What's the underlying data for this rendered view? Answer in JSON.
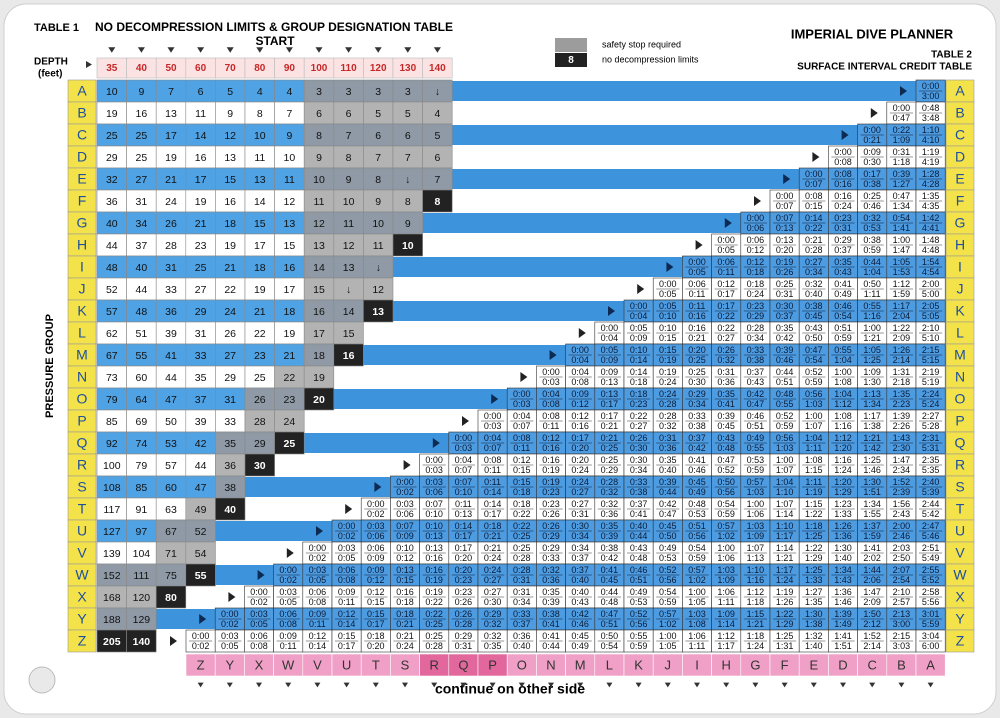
{
  "header": {
    "table1_label": "TABLE 1",
    "table1_title": "NO DECOMPRESSION LIMITS & GROUP DESIGNATION TABLE",
    "start": "START",
    "depth_label": [
      "DEPTH",
      "(feet)"
    ],
    "planner_title": "IMPERIAL DIVE PLANNER",
    "table2_label": "TABLE 2",
    "table2_title": "SURFACE INTERVAL CREDIT TABLE"
  },
  "legend": {
    "safety_stop": "safety stop required",
    "ndl_sample": "8",
    "ndl": "no decompression limits"
  },
  "side_label": "PRESSURE GROUP",
  "footer": "continue on other side",
  "pressure_groups": [
    "A",
    "B",
    "C",
    "D",
    "E",
    "F",
    "G",
    "H",
    "I",
    "J",
    "K",
    "L",
    "M",
    "N",
    "O",
    "P",
    "Q",
    "R",
    "S",
    "T",
    "U",
    "V",
    "W",
    "X",
    "Y",
    "Z"
  ],
  "table1": {
    "depths": [
      35,
      40,
      50,
      60,
      70,
      80,
      90,
      100,
      110,
      120,
      130,
      140
    ],
    "rows": [
      [
        10,
        9,
        7,
        6,
        5,
        4,
        4,
        3,
        3,
        3,
        3,
        "↓"
      ],
      [
        19,
        16,
        13,
        11,
        9,
        8,
        7,
        6,
        6,
        5,
        5,
        4
      ],
      [
        25,
        25,
        17,
        14,
        12,
        10,
        9,
        8,
        7,
        6,
        6,
        5
      ],
      [
        29,
        25,
        19,
        16,
        13,
        11,
        10,
        9,
        8,
        7,
        7,
        6
      ],
      [
        32,
        27,
        21,
        17,
        15,
        13,
        11,
        10,
        9,
        8,
        "↓",
        7
      ],
      [
        36,
        31,
        24,
        19,
        16,
        14,
        12,
        11,
        10,
        9,
        8,
        8
      ],
      [
        40,
        34,
        26,
        21,
        18,
        15,
        13,
        12,
        11,
        10,
        9
      ],
      [
        44,
        37,
        28,
        23,
        19,
        17,
        15,
        13,
        12,
        11,
        10
      ],
      [
        48,
        40,
        31,
        25,
        21,
        18,
        16,
        14,
        13,
        "↓"
      ],
      [
        52,
        44,
        33,
        27,
        22,
        19,
        17,
        15,
        "↓",
        12
      ],
      [
        57,
        48,
        36,
        29,
        24,
        21,
        18,
        16,
        14,
        13
      ],
      [
        62,
        51,
        39,
        31,
        26,
        22,
        19,
        17,
        15
      ],
      [
        67,
        55,
        41,
        33,
        27,
        23,
        21,
        18,
        16
      ],
      [
        73,
        60,
        44,
        35,
        29,
        25,
        22,
        19
      ],
      [
        79,
        64,
        47,
        37,
        31,
        26,
        23,
        20
      ],
      [
        85,
        69,
        50,
        39,
        33,
        28,
        24
      ],
      [
        92,
        74,
        53,
        42,
        35,
        29,
        25
      ],
      [
        100,
        79,
        57,
        44,
        36,
        30
      ],
      [
        108,
        85,
        60,
        47,
        38
      ],
      [
        117,
        91,
        63,
        49,
        40
      ],
      [
        127,
        97,
        67,
        52
      ],
      [
        139,
        104,
        71,
        54
      ],
      [
        152,
        111,
        75,
        55
      ],
      [
        168,
        120,
        80
      ],
      [
        188,
        129
      ],
      [
        205,
        140
      ]
    ]
  },
  "table2": {
    "rows": [
      {
        "from": [
          "0:00"
        ],
        "to": [
          "3:00"
        ]
      },
      {
        "from": [
          "0:00",
          "0:48"
        ],
        "to": [
          "0:47",
          "3:48"
        ]
      },
      {
        "from": [
          "0:00",
          "0:22",
          "1:10"
        ],
        "to": [
          "0:21",
          "1:09",
          "4:10"
        ]
      },
      {
        "from": [
          "0:00",
          "0:09",
          "0:31",
          "1:19"
        ],
        "to": [
          "0:08",
          "0:30",
          "1:18",
          "4:19"
        ]
      },
      {
        "from": [
          "0:00",
          "0:08",
          "0:17",
          "0:39",
          "1:28"
        ],
        "to": [
          "0:07",
          "0:16",
          "0:38",
          "1:27",
          "4:28"
        ]
      },
      {
        "from": [
          "0:00",
          "0:08",
          "0:16",
          "0:25",
          "0:47",
          "1:35"
        ],
        "to": [
          "0:07",
          "0:15",
          "0:24",
          "0:46",
          "1:34",
          "4:35"
        ]
      },
      {
        "from": [
          "0:00",
          "0:07",
          "0:14",
          "0:23",
          "0:32",
          "0:54",
          "1:42"
        ],
        "to": [
          "0:06",
          "0:13",
          "0:22",
          "0:31",
          "0:53",
          "1:41",
          "4:41"
        ]
      },
      {
        "from": [
          "0:00",
          "0:06",
          "0:13",
          "0:21",
          "0:29",
          "0:38",
          "1:00",
          "1:48"
        ],
        "to": [
          "0:05",
          "0:12",
          "0:20",
          "0:28",
          "0:37",
          "0:59",
          "1:47",
          "4:48"
        ]
      },
      {
        "from": [
          "0:00",
          "0:06",
          "0:12",
          "0:19",
          "0:27",
          "0:35",
          "0:44",
          "1:05",
          "1:54"
        ],
        "to": [
          "0:05",
          "0:11",
          "0:18",
          "0:26",
          "0:34",
          "0:43",
          "1:04",
          "1:53",
          "4:54"
        ]
      },
      {
        "from": [
          "0:00",
          "0:06",
          "0:12",
          "0:18",
          "0:25",
          "0:32",
          "0:41",
          "0:50",
          "1:12",
          "2:00"
        ],
        "to": [
          "0:05",
          "0:11",
          "0:17",
          "0:24",
          "0:31",
          "0:40",
          "0:49",
          "1:11",
          "1:59",
          "5:00"
        ]
      },
      {
        "from": [
          "0:00",
          "0:05",
          "0:11",
          "0:17",
          "0:23",
          "0:30",
          "0:38",
          "0:46",
          "0:55",
          "1:17",
          "2:05"
        ],
        "to": [
          "0:04",
          "0:10",
          "0:16",
          "0:22",
          "0:29",
          "0:37",
          "0:45",
          "0:54",
          "1:16",
          "2:04",
          "5:05"
        ]
      },
      {
        "from": [
          "0:00",
          "0:05",
          "0:10",
          "0:16",
          "0:22",
          "0:28",
          "0:35",
          "0:43",
          "0:51",
          "1:00",
          "1:22",
          "2:10"
        ],
        "to": [
          "0:04",
          "0:09",
          "0:15",
          "0:21",
          "0:27",
          "0:34",
          "0:42",
          "0:50",
          "0:59",
          "1:21",
          "2:09",
          "5:10"
        ]
      },
      {
        "from": [
          "0:00",
          "0:05",
          "0:10",
          "0:15",
          "0:20",
          "0:26",
          "0:33",
          "0:39",
          "0:47",
          "0:55",
          "1:05",
          "1:26",
          "2:15"
        ],
        "to": [
          "0:04",
          "0:09",
          "0:14",
          "0:19",
          "0:25",
          "0:32",
          "0:38",
          "0:46",
          "0:54",
          "1:04",
          "1:25",
          "2:14",
          "5:15"
        ]
      },
      {
        "from": [
          "0:00",
          "0:04",
          "0:09",
          "0:14",
          "0:19",
          "0:25",
          "0:31",
          "0:37",
          "0:44",
          "0:52",
          "1:00",
          "1:09",
          "1:31",
          "2:19"
        ],
        "to": [
          "0:03",
          "0:08",
          "0:13",
          "0:18",
          "0:24",
          "0:30",
          "0:36",
          "0:43",
          "0:51",
          "0:59",
          "1:08",
          "1:30",
          "2:18",
          "5:19"
        ]
      },
      {
        "from": [
          "0:00",
          "0:04",
          "0:09",
          "0:13",
          "0:18",
          "0:24",
          "0:29",
          "0:35",
          "0:42",
          "0:48",
          "0:56",
          "1:04",
          "1:13",
          "1:35",
          "2:24"
        ],
        "to": [
          "0:03",
          "0:08",
          "0:12",
          "0:17",
          "0:23",
          "0:28",
          "0:34",
          "0:41",
          "0:47",
          "0:55",
          "1:03",
          "1:12",
          "1:34",
          "2:23",
          "5:24"
        ]
      },
      {
        "from": [
          "0:00",
          "0:04",
          "0:08",
          "0:12",
          "0:17",
          "0:22",
          "0:28",
          "0:33",
          "0:39",
          "0:46",
          "0:52",
          "1:00",
          "1:08",
          "1:17",
          "1:39",
          "2:27"
        ],
        "to": [
          "0:03",
          "0:07",
          "0:11",
          "0:16",
          "0:21",
          "0:27",
          "0:32",
          "0:38",
          "0:45",
          "0:51",
          "0:59",
          "1:07",
          "1:16",
          "1:38",
          "2:26",
          "5:28"
        ]
      },
      {
        "from": [
          "0:00",
          "0:04",
          "0:08",
          "0:12",
          "0:17",
          "0:21",
          "0:26",
          "0:31",
          "0:37",
          "0:43",
          "0:49",
          "0:56",
          "1:04",
          "1:12",
          "1:21",
          "1:43",
          "2:31"
        ],
        "to": [
          "0:03",
          "0:07",
          "0:11",
          "0:16",
          "0:20",
          "0:25",
          "0:30",
          "0:36",
          "0:42",
          "0:48",
          "0:55",
          "1:03",
          "1:11",
          "1:20",
          "1:42",
          "2:30",
          "5:31"
        ]
      },
      {
        "from": [
          "0:00",
          "0:04",
          "0:08",
          "0:12",
          "0:16",
          "0:20",
          "0:25",
          "0:30",
          "0:35",
          "0:41",
          "0:47",
          "0:53",
          "1:00",
          "1:08",
          "1:16",
          "1:25",
          "1:47",
          "2:35"
        ],
        "to": [
          "0:03",
          "0:07",
          "0:11",
          "0:15",
          "0:19",
          "0:24",
          "0:29",
          "0:34",
          "0:40",
          "0:46",
          "0:52",
          "0:59",
          "1:07",
          "1:15",
          "1:24",
          "1:46",
          "2:34",
          "5:35"
        ]
      },
      {
        "from": [
          "0:00",
          "0:03",
          "0:07",
          "0:11",
          "0:15",
          "0:19",
          "0:24",
          "0:28",
          "0:33",
          "0:39",
          "0:45",
          "0:50",
          "0:57",
          "1:04",
          "1:11",
          "1:20",
          "1:30",
          "1:52",
          "2:40"
        ],
        "to": [
          "0:02",
          "0:06",
          "0:10",
          "0:14",
          "0:18",
          "0:23",
          "0:27",
          "0:32",
          "0:38",
          "0:44",
          "0:49",
          "0:56",
          "1:03",
          "1:10",
          "1:19",
          "1:29",
          "1:51",
          "2:39",
          "5:39"
        ]
      },
      {
        "from": [
          "0:00",
          "0:03",
          "0:07",
          "0:11",
          "0:14",
          "0:18",
          "0:23",
          "0:27",
          "0:32",
          "0:37",
          "0:42",
          "0:48",
          "0:54",
          "1:00",
          "1:07",
          "1:15",
          "1:23",
          "1:34",
          "1:56",
          "2:44"
        ],
        "to": [
          "0:02",
          "0:06",
          "0:10",
          "0:13",
          "0:17",
          "0:22",
          "0:26",
          "0:31",
          "0:36",
          "0:41",
          "0:47",
          "0:53",
          "0:59",
          "1:06",
          "1:14",
          "1:22",
          "1:33",
          "1:55",
          "2:43",
          "5:42"
        ]
      },
      {
        "from": [
          "0:00",
          "0:03",
          "0:07",
          "0:10",
          "0:14",
          "0:18",
          "0:22",
          "0:26",
          "0:30",
          "0:35",
          "0:40",
          "0:45",
          "0:51",
          "0:57",
          "1:03",
          "1:10",
          "1:18",
          "1:26",
          "1:37",
          "2:00",
          "2:47"
        ],
        "to": [
          "0:02",
          "0:06",
          "0:09",
          "0:13",
          "0:17",
          "0:21",
          "0:25",
          "0:29",
          "0:34",
          "0:39",
          "0:44",
          "0:50",
          "0:56",
          "1:02",
          "1:09",
          "1:17",
          "1:25",
          "1:36",
          "1:59",
          "2:46",
          "5:46"
        ]
      },
      {
        "from": [
          "0:00",
          "0:03",
          "0:06",
          "0:10",
          "0:13",
          "0:17",
          "0:21",
          "0:25",
          "0:29",
          "0:34",
          "0:38",
          "0:43",
          "0:49",
          "0:54",
          "1:00",
          "1:07",
          "1:14",
          "1:22",
          "1:30",
          "1:41",
          "2:03",
          "2:51"
        ],
        "to": [
          "0:02",
          "0:05",
          "0:09",
          "0:12",
          "0:16",
          "0:20",
          "0:24",
          "0:28",
          "0:33",
          "0:37",
          "0:42",
          "0:48",
          "0:53",
          "0:59",
          "1:06",
          "1:13",
          "1:21",
          "1:29",
          "1:40",
          "2:02",
          "2:50",
          "5:49"
        ]
      },
      {
        "from": [
          "0:00",
          "0:03",
          "0:06",
          "0:09",
          "0:13",
          "0:16",
          "0:20",
          "0:24",
          "0:28",
          "0:32",
          "0:37",
          "0:41",
          "0:46",
          "0:52",
          "0:57",
          "1:03",
          "1:10",
          "1:17",
          "1:25",
          "1:34",
          "1:44",
          "2:07",
          "2:55"
        ],
        "to": [
          "0:02",
          "0:05",
          "0:08",
          "0:12",
          "0:15",
          "0:19",
          "0:23",
          "0:27",
          "0:31",
          "0:36",
          "0:40",
          "0:45",
          "0:51",
          "0:56",
          "1:02",
          "1:09",
          "1:16",
          "1:24",
          "1:33",
          "1:43",
          "2:06",
          "2:54",
          "5:52"
        ]
      },
      {
        "from": [
          "0:00",
          "0:03",
          "0:06",
          "0:09",
          "0:12",
          "0:16",
          "0:19",
          "0:23",
          "0:27",
          "0:31",
          "0:35",
          "0:40",
          "0:44",
          "0:49",
          "0:54",
          "1:00",
          "1:06",
          "1:12",
          "1:19",
          "1:27",
          "1:36",
          "1:47",
          "2:10",
          "2:58"
        ],
        "to": [
          "0:02",
          "0:05",
          "0:08",
          "0:11",
          "0:15",
          "0:18",
          "0:22",
          "0:26",
          "0:30",
          "0:34",
          "0:39",
          "0:43",
          "0:48",
          "0:53",
          "0:59",
          "1:05",
          "1:11",
          "1:18",
          "1:26",
          "1:35",
          "1:46",
          "2:09",
          "2:57",
          "5:56"
        ]
      },
      {
        "from": [
          "0:00",
          "0:03",
          "0:06",
          "0:09",
          "0:12",
          "0:15",
          "0:18",
          "0:22",
          "0:26",
          "0:29",
          "0:33",
          "0:38",
          "0:42",
          "0:47",
          "0:52",
          "0:57",
          "1:03",
          "1:09",
          "1:15",
          "1:22",
          "1:30",
          "1:39",
          "1:50",
          "2:13",
          "3:01"
        ],
        "to": [
          "0:02",
          "0:05",
          "0:08",
          "0:11",
          "0:14",
          "0:17",
          "0:21",
          "0:25",
          "0:28",
          "0:32",
          "0:37",
          "0:41",
          "0:46",
          "0:51",
          "0:56",
          "1:02",
          "1:08",
          "1:14",
          "1:21",
          "1:29",
          "1:38",
          "1:49",
          "2:12",
          "3:00",
          "5:59"
        ]
      },
      {
        "from": [
          "0:00",
          "0:03",
          "0:06",
          "0:09",
          "0:12",
          "0:15",
          "0:18",
          "0:21",
          "0:25",
          "0:29",
          "0:32",
          "0:36",
          "0:41",
          "0:45",
          "0:50",
          "0:55",
          "1:00",
          "1:06",
          "1:12",
          "1:18",
          "1:25",
          "1:32",
          "1:41",
          "1:52",
          "2:15",
          "3:04"
        ],
        "to": [
          "0:02",
          "0:05",
          "0:08",
          "0:11",
          "0:14",
          "0:17",
          "0:20",
          "0:24",
          "0:28",
          "0:31",
          "0:35",
          "0:40",
          "0:44",
          "0:49",
          "0:54",
          "0:59",
          "1:05",
          "1:11",
          "1:17",
          "1:24",
          "1:31",
          "1:40",
          "1:51",
          "2:14",
          "3:03",
          "6:00"
        ]
      }
    ]
  }
}
